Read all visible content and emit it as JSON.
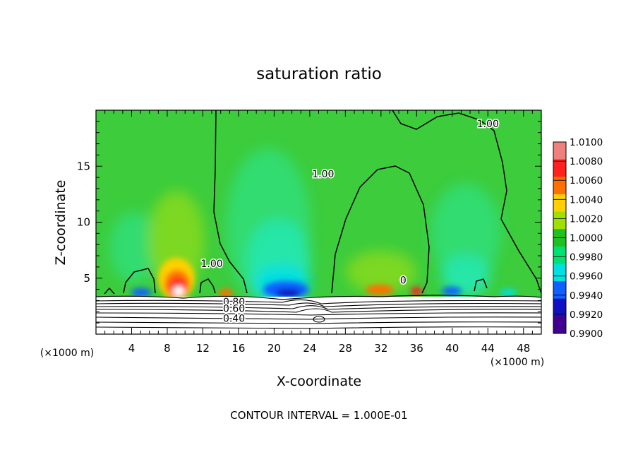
{
  "chart_data": {
    "type": "heatmap",
    "title": "saturation ratio",
    "xlabel": "X-coordinate",
    "ylabel": "Z-coordinate",
    "x_unit_label": "(×1000 m)",
    "z_unit_label": "(×1000 m)",
    "xlim": [
      0,
      50
    ],
    "ylim": [
      0,
      20
    ],
    "x_ticks": [
      4,
      8,
      12,
      16,
      20,
      24,
      28,
      32,
      36,
      40,
      44,
      48
    ],
    "y_ticks": [
      5,
      10,
      15
    ],
    "footer": "CONTOUR INTERVAL = 1.000E-01",
    "colorbar": {
      "labels": [
        "1.0100",
        "1.0080",
        "1.0060",
        "1.0040",
        "1.0020",
        "1.0000",
        "0.9980",
        "0.9960",
        "0.9940",
        "0.9920",
        "0.9900"
      ],
      "colors": [
        "#f08080",
        "#ff2020",
        "#ff7000",
        "#ffd000",
        "#a0e000",
        "#20c020",
        "#00e070",
        "#00e0e0",
        "#1060ff",
        "#1010c0",
        "#400090"
      ]
    },
    "contour_labels": [
      {
        "text": "1.00",
        "x": 13.0,
        "z": 6.0
      },
      {
        "text": "1.00",
        "x": 25.5,
        "z": 14.0
      },
      {
        "text": "1.00",
        "x": 44.0,
        "z": 18.5
      },
      {
        "text": "0",
        "x": 34.5,
        "z": 4.5
      },
      {
        "text": "0.80",
        "x": 15.5,
        "z": 2.6
      },
      {
        "text": "0.60",
        "x": 15.5,
        "z": 2.0
      },
      {
        "text": "0.40",
        "x": 15.5,
        "z": 1.1
      }
    ]
  }
}
